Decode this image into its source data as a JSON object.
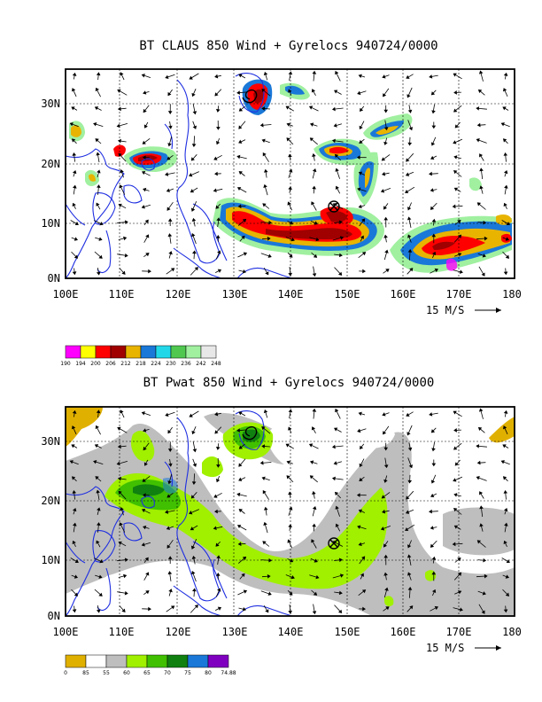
{
  "panels": [
    {
      "title": "BT CLAUS 850 Wind + Gyrelocs 940724/0000",
      "x_ticks": [
        "100E",
        "110E",
        "120E",
        "130E",
        "140E",
        "150E",
        "160E",
        "170E",
        "180"
      ],
      "y_ticks": [
        "0N",
        "10N",
        "20N",
        "30N"
      ],
      "vector_label": "15 M/S",
      "legend_values": [
        "190",
        "194",
        "200",
        "206",
        "212",
        "218",
        "224",
        "230",
        "236",
        "242",
        "248"
      ],
      "legend_colors": [
        "#ff00ff",
        "#ffff00",
        "#ff0000",
        "#a00000",
        "#e8b400",
        "#1a78d8",
        "#22d8e8",
        "#50c850",
        "#a0f0a0",
        "#e8e8e8"
      ]
    },
    {
      "title": "BT Pwat 850 Wind + Gyrelocs 940724/0000",
      "x_ticks": [
        "100E",
        "110E",
        "120E",
        "130E",
        "140E",
        "150E",
        "160E",
        "170E",
        "180"
      ],
      "y_ticks": [
        "0N",
        "10N",
        "20N",
        "30N"
      ],
      "vector_label": "15 M/S",
      "legend_values": [
        "0",
        "85",
        "55",
        "60",
        "65",
        "70",
        "75",
        "80",
        "74.88"
      ],
      "legend_colors": [
        "#e0b000",
        "#ffffff",
        "#bebebe",
        "#a0f000",
        "#40c000",
        "#108010",
        "#1a78d8",
        "#8000c0"
      ]
    }
  ]
}
